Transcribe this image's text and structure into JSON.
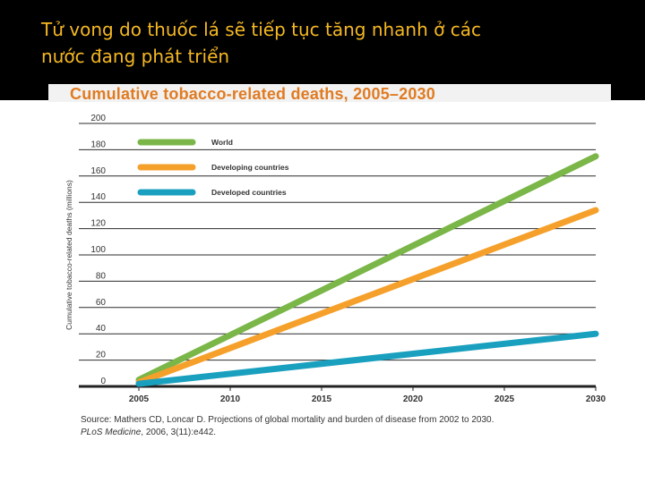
{
  "slide": {
    "title_line1": "Tử vong do thuốc lá sẽ tiếp tục tăng nhanh ở các",
    "title_line2": "nước đang phát triển"
  },
  "source": {
    "line1": "Source: Mathers CD, Loncar D. Projections of global mortality and burden of disease from 2002 to 2030.",
    "line2_journal": "PLoS Medicine",
    "line2_rest": ", 2006, 3(11):e442."
  },
  "colors": {
    "title_text": "#f5b823",
    "chart_title": "#e07b22",
    "world": "#7ab648",
    "developing": "#f5a02b",
    "developed": "#1aa0bf"
  },
  "chart_data": {
    "type": "line",
    "title": "Cumulative tobacco-related deaths, 2005–2030",
    "xlabel": "",
    "ylabel": "Cumulative tobacco-related deaths (millions)",
    "x": [
      2005,
      2030
    ],
    "x_ticks": [
      2005,
      2010,
      2015,
      2020,
      2025,
      2030
    ],
    "y_ticks": [
      0,
      20,
      40,
      60,
      80,
      100,
      120,
      140,
      160,
      180,
      200
    ],
    "ylim": [
      0,
      200
    ],
    "xlim": [
      2005,
      2030
    ],
    "grid": true,
    "legend": "top-left",
    "series": [
      {
        "name": "World",
        "color": "#7ab648",
        "values": [
          5,
          175
        ]
      },
      {
        "name": "Developing countries",
        "color": "#f5a02b",
        "values": [
          3,
          134
        ]
      },
      {
        "name": "Developed countries",
        "color": "#1aa0bf",
        "values": [
          2,
          40
        ]
      }
    ]
  }
}
